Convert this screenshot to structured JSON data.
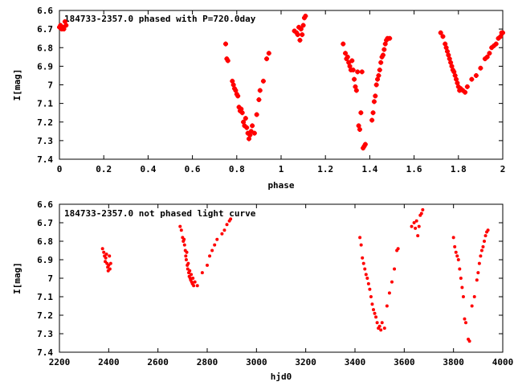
{
  "colors": {
    "points": "#ff0000",
    "axes": "#000000",
    "background": "#ffffff"
  },
  "chart_data": [
    {
      "type": "scatter",
      "title": "184733-2357.0 phased with P=720.0day",
      "xlabel": "phase",
      "ylabel": "I[mag]",
      "xlim": [
        0,
        2
      ],
      "ylim": [
        7.4,
        6.6
      ],
      "y_inverted": true,
      "grid": false,
      "xticks": [
        "0",
        "0.2",
        "0.4",
        "0.6",
        "0.8",
        "1",
        "1.2",
        "1.4",
        "1.6",
        "1.8",
        "2"
      ],
      "yticks": [
        "6.6",
        "6.7",
        "6.8",
        "6.9",
        "7",
        "7.1",
        "7.2",
        "7.3",
        "7.4"
      ],
      "marker": "cross",
      "series": [
        {
          "points": [
            [
              0.0,
              6.69
            ],
            [
              0.005,
              6.68
            ],
            [
              0.01,
              6.7
            ],
            [
              0.015,
              6.69
            ],
            [
              0.02,
              6.7
            ],
            [
              0.025,
              6.66
            ],
            [
              0.03,
              6.68
            ],
            [
              0.75,
              6.78
            ],
            [
              0.755,
              6.86
            ],
            [
              0.76,
              6.87
            ],
            [
              0.78,
              6.98
            ],
            [
              0.785,
              7.0
            ],
            [
              0.79,
              7.02
            ],
            [
              0.795,
              7.03
            ],
            [
              0.8,
              7.05
            ],
            [
              0.805,
              7.06
            ],
            [
              0.81,
              7.12
            ],
            [
              0.815,
              7.14
            ],
            [
              0.82,
              7.13
            ],
            [
              0.825,
              7.15
            ],
            [
              0.83,
              7.2
            ],
            [
              0.835,
              7.22
            ],
            [
              0.84,
              7.18
            ],
            [
              0.845,
              7.23
            ],
            [
              0.85,
              7.26
            ],
            [
              0.855,
              7.29
            ],
            [
              0.86,
              7.27
            ],
            [
              0.865,
              7.25
            ],
            [
              0.87,
              7.22
            ],
            [
              0.88,
              7.26
            ],
            [
              0.89,
              7.16
            ],
            [
              0.9,
              7.08
            ],
            [
              0.905,
              7.03
            ],
            [
              0.92,
              6.98
            ],
            [
              0.935,
              6.86
            ],
            [
              0.945,
              6.83
            ],
            [
              1.06,
              6.71
            ],
            [
              1.07,
              6.72
            ],
            [
              1.075,
              6.73
            ],
            [
              1.08,
              6.69
            ],
            [
              1.085,
              6.76
            ],
            [
              1.09,
              6.7
            ],
            [
              1.095,
              6.73
            ],
            [
              1.1,
              6.68
            ],
            [
              1.105,
              6.64
            ],
            [
              1.11,
              6.63
            ],
            [
              1.28,
              6.78
            ],
            [
              1.29,
              6.83
            ],
            [
              1.295,
              6.86
            ],
            [
              1.3,
              6.85
            ],
            [
              1.305,
              6.88
            ],
            [
              1.31,
              6.9
            ],
            [
              1.315,
              6.92
            ],
            [
              1.32,
              6.87
            ],
            [
              1.325,
              6.92
            ],
            [
              1.33,
              6.97
            ],
            [
              1.335,
              7.01
            ],
            [
              1.34,
              7.03
            ],
            [
              1.345,
              6.93
            ],
            [
              1.35,
              7.22
            ],
            [
              1.355,
              7.24
            ],
            [
              1.36,
              7.15
            ],
            [
              1.365,
              6.93
            ],
            [
              1.37,
              7.34
            ],
            [
              1.375,
              7.33
            ],
            [
              1.38,
              7.32
            ],
            [
              1.41,
              7.19
            ],
            [
              1.415,
              7.15
            ],
            [
              1.42,
              7.09
            ],
            [
              1.425,
              7.06
            ],
            [
              1.43,
              7.0
            ],
            [
              1.435,
              6.97
            ],
            [
              1.44,
              6.95
            ],
            [
              1.445,
              6.92
            ],
            [
              1.45,
              6.88
            ],
            [
              1.455,
              6.85
            ],
            [
              1.46,
              6.84
            ],
            [
              1.465,
              6.81
            ],
            [
              1.47,
              6.78
            ],
            [
              1.475,
              6.76
            ],
            [
              1.48,
              6.75
            ],
            [
              1.49,
              6.75
            ],
            [
              1.72,
              6.72
            ],
            [
              1.73,
              6.74
            ],
            [
              1.74,
              6.78
            ],
            [
              1.745,
              6.8
            ],
            [
              1.75,
              6.82
            ],
            [
              1.755,
              6.84
            ],
            [
              1.76,
              6.86
            ],
            [
              1.765,
              6.88
            ],
            [
              1.77,
              6.9
            ],
            [
              1.775,
              6.92
            ],
            [
              1.78,
              6.93
            ],
            [
              1.785,
              6.95
            ],
            [
              1.79,
              6.97
            ],
            [
              1.795,
              6.99
            ],
            [
              1.8,
              7.01
            ],
            [
              1.805,
              7.03
            ],
            [
              1.81,
              7.02
            ],
            [
              1.82,
              7.03
            ],
            [
              1.83,
              7.04
            ],
            [
              1.84,
              7.01
            ],
            [
              1.86,
              6.97
            ],
            [
              1.88,
              6.95
            ],
            [
              1.9,
              6.91
            ],
            [
              1.92,
              6.86
            ],
            [
              1.93,
              6.85
            ],
            [
              1.94,
              6.83
            ],
            [
              1.95,
              6.8
            ],
            [
              1.96,
              6.79
            ],
            [
              1.97,
              6.78
            ],
            [
              1.98,
              6.75
            ],
            [
              1.99,
              6.74
            ],
            [
              1.995,
              6.72
            ],
            [
              2.0,
              6.72
            ]
          ]
        }
      ]
    },
    {
      "type": "scatter",
      "title": "184733-2357.0 not phased light curve",
      "xlabel": "hjd0",
      "ylabel": "I[mag]",
      "xlim": [
        2200,
        4000
      ],
      "ylim": [
        7.4,
        6.6
      ],
      "y_inverted": true,
      "grid": false,
      "xticks": [
        "2200",
        "2400",
        "2600",
        "2800",
        "3000",
        "3200",
        "3400",
        "3600",
        "3800",
        "4000"
      ],
      "yticks": [
        "6.6",
        "6.7",
        "6.8",
        "6.9",
        "7",
        "7.1",
        "7.2",
        "7.3",
        "7.4"
      ],
      "marker": "dot",
      "series": [
        {
          "points": [
            [
              2375,
              6.84
            ],
            [
              2380,
              6.86
            ],
            [
              2383,
              6.88
            ],
            [
              2386,
              6.91
            ],
            [
              2388,
              6.89
            ],
            [
              2391,
              6.87
            ],
            [
              2393,
              6.92
            ],
            [
              2396,
              6.94
            ],
            [
              2398,
              6.96
            ],
            [
              2400,
              6.93
            ],
            [
              2403,
              6.88
            ],
            [
              2405,
              6.95
            ],
            [
              2408,
              6.92
            ],
            [
              2690,
              6.72
            ],
            [
              2695,
              6.74
            ],
            [
              2700,
              6.78
            ],
            [
              2703,
              6.8
            ],
            [
              2706,
              6.79
            ],
            [
              2708,
              6.82
            ],
            [
              2711,
              6.85
            ],
            [
              2713,
              6.88
            ],
            [
              2715,
              6.9
            ],
            [
              2717,
              6.86
            ],
            [
              2719,
              6.93
            ],
            [
              2721,
              6.95
            ],
            [
              2723,
              6.92
            ],
            [
              2725,
              6.97
            ],
            [
              2727,
              6.99
            ],
            [
              2729,
              6.96
            ],
            [
              2731,
              7.0
            ],
            [
              2733,
              7.01
            ],
            [
              2735,
              6.98
            ],
            [
              2737,
              7.02
            ],
            [
              2740,
              7.03
            ],
            [
              2742,
              7.0
            ],
            [
              2745,
              7.04
            ],
            [
              2750,
              7.02
            ],
            [
              2760,
              7.04
            ],
            [
              2780,
              6.97
            ],
            [
              2800,
              6.93
            ],
            [
              2810,
              6.88
            ],
            [
              2820,
              6.85
            ],
            [
              2830,
              6.82
            ],
            [
              2840,
              6.79
            ],
            [
              2860,
              6.76
            ],
            [
              2870,
              6.74
            ],
            [
              2880,
              6.71
            ],
            [
              2890,
              6.69
            ],
            [
              2895,
              6.68
            ],
            [
              3420,
              6.78
            ],
            [
              3425,
              6.82
            ],
            [
              3430,
              6.89
            ],
            [
              3435,
              6.92
            ],
            [
              3440,
              6.95
            ],
            [
              3445,
              6.98
            ],
            [
              3450,
              7.0
            ],
            [
              3455,
              7.03
            ],
            [
              3460,
              7.06
            ],
            [
              3465,
              7.1
            ],
            [
              3470,
              7.14
            ],
            [
              3475,
              7.17
            ],
            [
              3480,
              7.19
            ],
            [
              3485,
              7.21
            ],
            [
              3490,
              7.24
            ],
            [
              3495,
              7.27
            ],
            [
              3500,
              7.26
            ],
            [
              3505,
              7.28
            ],
            [
              3510,
              7.24
            ],
            [
              3520,
              7.27
            ],
            [
              3530,
              7.15
            ],
            [
              3540,
              7.08
            ],
            [
              3550,
              7.02
            ],
            [
              3560,
              6.95
            ],
            [
              3570,
              6.85
            ],
            [
              3575,
              6.84
            ],
            [
              3630,
              6.72
            ],
            [
              3640,
              6.7
            ],
            [
              3645,
              6.73
            ],
            [
              3650,
              6.69
            ],
            [
              3655,
              6.77
            ],
            [
              3660,
              6.72
            ],
            [
              3665,
              6.66
            ],
            [
              3670,
              6.65
            ],
            [
              3675,
              6.63
            ],
            [
              3800,
              6.78
            ],
            [
              3805,
              6.83
            ],
            [
              3810,
              6.86
            ],
            [
              3815,
              6.88
            ],
            [
              3820,
              6.9
            ],
            [
              3825,
              6.95
            ],
            [
              3830,
              7.0
            ],
            [
              3835,
              7.05
            ],
            [
              3840,
              7.1
            ],
            [
              3845,
              7.22
            ],
            [
              3850,
              7.24
            ],
            [
              3860,
              7.33
            ],
            [
              3865,
              7.34
            ],
            [
              3875,
              7.15
            ],
            [
              3885,
              7.1
            ],
            [
              3895,
              7.01
            ],
            [
              3900,
              6.97
            ],
            [
              3905,
              6.92
            ],
            [
              3910,
              6.88
            ],
            [
              3915,
              6.85
            ],
            [
              3920,
              6.83
            ],
            [
              3925,
              6.8
            ],
            [
              3930,
              6.77
            ],
            [
              3935,
              6.75
            ],
            [
              3940,
              6.74
            ]
          ]
        }
      ]
    }
  ]
}
